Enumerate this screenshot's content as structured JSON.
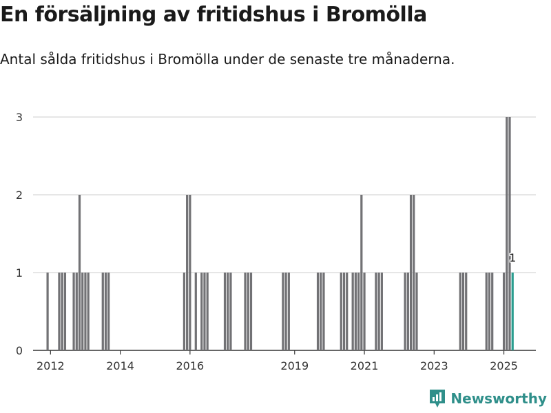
{
  "header": {
    "title": "En försäljning av fritidshus i Bromölla",
    "subtitle": "Antal sålda fritidshus i Bromölla under de senaste tre månaderna."
  },
  "brand": {
    "name": "Newsworthy",
    "icon": "newsworthy-logo-icon",
    "color": "#2f8f8a"
  },
  "colors": {
    "bar": "#727275",
    "highlight": "#2a9d8f",
    "grid": "#dddddd",
    "axis": "#333333"
  },
  "chart_data": {
    "type": "bar",
    "title": "En försäljning av fritidshus i Bromölla",
    "subtitle": "Antal sålda fritidshus i Bromölla under de senaste tre månaderna.",
    "xlabel": "",
    "ylabel": "",
    "ylim": [
      0,
      3
    ],
    "yticks": [
      0,
      1,
      2,
      3
    ],
    "xticks": [
      {
        "label": "2012",
        "year": 2012
      },
      {
        "label": "2014",
        "year": 2014
      },
      {
        "label": "2016",
        "year": 2016
      },
      {
        "label": "2019",
        "year": 2019
      },
      {
        "label": "2021",
        "year": 2021
      },
      {
        "label": "2023",
        "year": 2023
      },
      {
        "label": "2025",
        "year": 2025
      }
    ],
    "x_range": [
      "2011-07",
      "2025-12"
    ],
    "grid": "horizontal",
    "x": [
      "2011-12",
      "2012-04",
      "2012-05",
      "2012-06",
      "2012-09",
      "2012-10",
      "2012-11",
      "2012-12",
      "2013-01",
      "2013-02",
      "2013-07",
      "2013-08",
      "2013-09",
      "2015-11",
      "2015-12",
      "2016-01",
      "2016-03",
      "2016-05",
      "2016-06",
      "2016-07",
      "2017-01",
      "2017-02",
      "2017-03",
      "2017-08",
      "2017-09",
      "2017-10",
      "2018-09",
      "2018-10",
      "2018-11",
      "2019-09",
      "2019-10",
      "2019-11",
      "2020-05",
      "2020-06",
      "2020-07",
      "2020-09",
      "2020-10",
      "2020-11",
      "2020-12",
      "2021-01",
      "2021-05",
      "2021-06",
      "2021-07",
      "2022-03",
      "2022-04",
      "2022-05",
      "2022-06",
      "2022-07",
      "2023-10",
      "2023-11",
      "2023-12",
      "2024-07",
      "2024-08",
      "2024-09",
      "2025-01",
      "2025-02",
      "2025-03",
      "2025-04"
    ],
    "values": [
      1,
      1,
      1,
      1,
      1,
      1,
      2,
      1,
      1,
      1,
      1,
      1,
      1,
      1,
      2,
      2,
      1,
      1,
      1,
      1,
      1,
      1,
      1,
      1,
      1,
      1,
      1,
      1,
      1,
      1,
      1,
      1,
      1,
      1,
      1,
      1,
      1,
      1,
      2,
      1,
      1,
      1,
      1,
      1,
      1,
      2,
      2,
      1,
      1,
      1,
      1,
      1,
      1,
      1,
      1,
      3,
      3,
      1
    ],
    "highlight": {
      "x": "2025-04",
      "value": 1,
      "label": "1"
    }
  }
}
